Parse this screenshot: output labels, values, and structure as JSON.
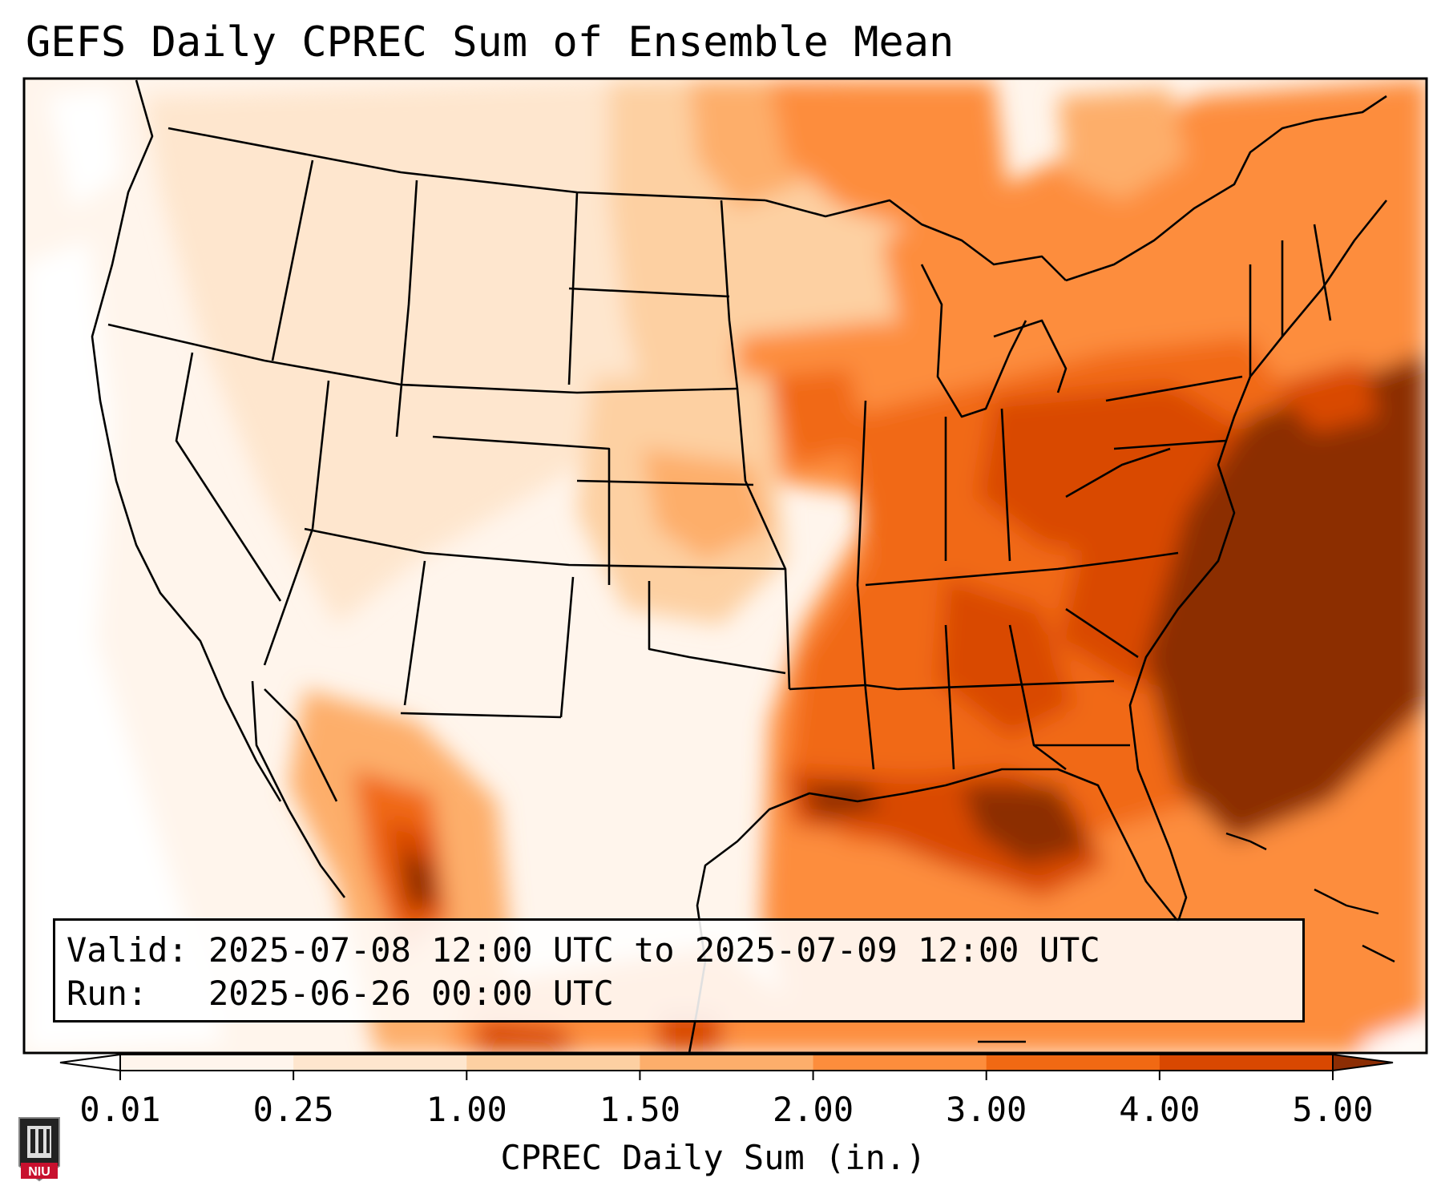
{
  "title": "GEFS Daily CPREC Sum of Ensemble Mean",
  "info": {
    "valid_label": "Valid:",
    "valid_value": "2025-07-08 12:00 UTC to 2025-07-09 12:00 UTC",
    "run_label": "Run:",
    "run_value": "2025-06-26 00:00 UTC"
  },
  "colorbar": {
    "title": "CPREC Daily Sum (in.)",
    "ticks": [
      "0.01",
      "0.25",
      "1.00",
      "1.50",
      "2.00",
      "3.00",
      "4.00",
      "5.00"
    ],
    "colors": [
      "#fff5ec",
      "#fee6ce",
      "#fdd0a2",
      "#fdae6b",
      "#fd8d3c",
      "#f16913",
      "#d94801",
      "#8c2d04"
    ],
    "under_color": "#ffffff",
    "over_color": "#8c2d04"
  },
  "map": {
    "region": "Continental United States",
    "max_region": "Southeast US coast and western Atlantic",
    "background_color": "#fff5ec",
    "ocean_outside_color": "#ffffff"
  },
  "logo": {
    "text": "NIU",
    "color": "#c8102e"
  }
}
